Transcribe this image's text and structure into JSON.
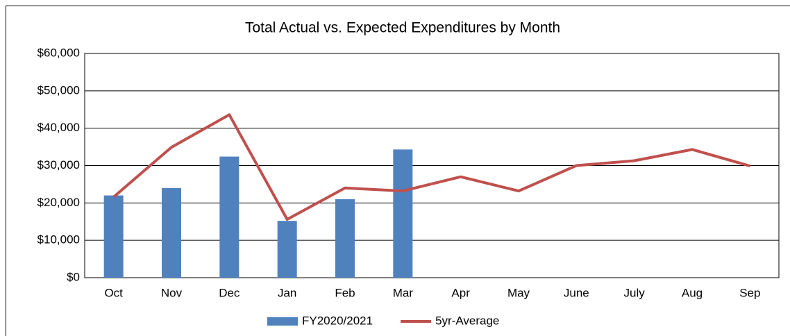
{
  "chart_data": {
    "type": "bar_line",
    "title": "Total Actual vs. Expected Expenditures by Month",
    "categories": [
      "Oct",
      "Nov",
      "Dec",
      "Jan",
      "Feb",
      "Mar",
      "Apr",
      "May",
      "June",
      "July",
      "Aug",
      "Sep"
    ],
    "series": [
      {
        "name": "FY2020/2021",
        "type": "bar",
        "color": "#4f81bd",
        "values": [
          22000,
          24000,
          32400,
          15200,
          21000,
          34300,
          null,
          null,
          null,
          null,
          null,
          null
        ]
      },
      {
        "name": "5yr-Average",
        "type": "line",
        "color": "#c0504d",
        "values": [
          21600,
          34900,
          43600,
          15600,
          24000,
          23200,
          27000,
          23200,
          30000,
          31300,
          34300,
          29900
        ]
      }
    ],
    "ylim": [
      0,
      60000
    ],
    "yticks": [
      {
        "value": 0,
        "label": "$0"
      },
      {
        "value": 10000,
        "label": "$10,000"
      },
      {
        "value": 20000,
        "label": "$20,000"
      },
      {
        "value": 30000,
        "label": "$30,000"
      },
      {
        "value": 40000,
        "label": "$40,000"
      },
      {
        "value": 50000,
        "label": "$50,000"
      },
      {
        "value": 60000,
        "label": "$60,000"
      }
    ],
    "grid": true,
    "legend": "bottom"
  }
}
